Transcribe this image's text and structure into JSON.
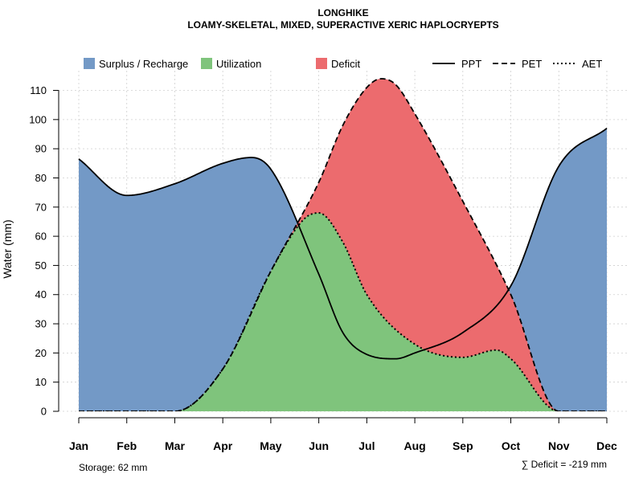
{
  "chart_data": {
    "type": "area",
    "title": "LONGHIKE",
    "subtitle": "LOAMY-SKELETAL, MIXED, SUPERACTIVE XERIC HAPLOCRYEPTS",
    "xlabel": "",
    "ylabel": "Water (mm)",
    "ylim": [
      0,
      115
    ],
    "yticks": [
      0,
      10,
      20,
      30,
      40,
      50,
      60,
      70,
      80,
      90,
      100,
      110
    ],
    "grid": true,
    "legend_position": "top",
    "categories": [
      "Jan",
      "Feb",
      "Mar",
      "Apr",
      "May",
      "Jun",
      "Jul",
      "Aug",
      "Sep",
      "Oct",
      "Nov",
      "Dec"
    ],
    "x": [
      1,
      2,
      3,
      4,
      5,
      6,
      7,
      8,
      9,
      10,
      11,
      12
    ],
    "series": [
      {
        "name": "PPT",
        "style": "solid",
        "points": [
          [
            1,
            86.5
          ],
          [
            2,
            74
          ],
          [
            3,
            78
          ],
          [
            4,
            85
          ],
          [
            4.6,
            87
          ],
          [
            5,
            83
          ],
          [
            6,
            47
          ],
          [
            6.5,
            27
          ],
          [
            7,
            19.5
          ],
          [
            7.6,
            18
          ],
          [
            8,
            20
          ],
          [
            9,
            27
          ],
          [
            10,
            43
          ],
          [
            11,
            84
          ],
          [
            12,
            97
          ]
        ]
      },
      {
        "name": "PET",
        "style": "dashed",
        "points": [
          [
            1,
            0
          ],
          [
            2,
            0
          ],
          [
            3,
            0
          ],
          [
            4,
            14.5
          ],
          [
            5,
            48
          ],
          [
            6,
            78.5
          ],
          [
            6.5,
            98
          ],
          [
            7,
            111
          ],
          [
            7.3,
            114
          ],
          [
            7.6,
            112
          ],
          [
            8,
            102
          ],
          [
            9,
            72
          ],
          [
            10,
            40
          ],
          [
            11,
            0
          ],
          [
            12,
            0
          ]
        ]
      },
      {
        "name": "AET",
        "style": "dotted",
        "points": [
          [
            1,
            0
          ],
          [
            2,
            0
          ],
          [
            3,
            0
          ],
          [
            4,
            14.5
          ],
          [
            5,
            48
          ],
          [
            5.7,
            66
          ],
          [
            6,
            68
          ],
          [
            6.5,
            58
          ],
          [
            7,
            40
          ],
          [
            8,
            23
          ],
          [
            9,
            18.5
          ],
          [
            9.7,
            21
          ],
          [
            10,
            18
          ],
          [
            11,
            0
          ],
          [
            12,
            0
          ]
        ]
      }
    ],
    "legend": [
      {
        "label": "Surplus / Recharge",
        "kind": "fill",
        "color": "#7399c6"
      },
      {
        "label": "Utilization",
        "kind": "fill",
        "color": "#7fc47c"
      },
      {
        "label": "Deficit",
        "kind": "fill",
        "color": "#ec6b6e"
      },
      {
        "label": "PPT",
        "kind": "line",
        "style": "solid"
      },
      {
        "label": "PET",
        "kind": "line",
        "style": "dashed"
      },
      {
        "label": "AET",
        "kind": "line",
        "style": "dotted"
      }
    ],
    "colors": {
      "surplus": "#7399c6",
      "utilization": "#7fc47c",
      "deficit": "#ec6b6e",
      "axis": "#000000",
      "grid": "#cfcfcf"
    },
    "annotations": {
      "storage": "Storage: 62 mm",
      "deficit_sum": "∑ Deficit = -219 mm"
    }
  }
}
